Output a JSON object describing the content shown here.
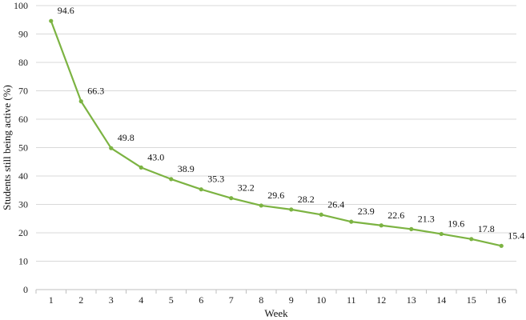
{
  "chart_data": {
    "type": "line",
    "xlabel": "Week",
    "ylabel": "Students still being active (%)",
    "ylim": [
      0,
      100
    ],
    "yticks": [
      0,
      10,
      20,
      30,
      40,
      50,
      60,
      70,
      80,
      90,
      100
    ],
    "categories": [
      "1",
      "2",
      "3",
      "4",
      "5",
      "6",
      "7",
      "8",
      "9",
      "10",
      "11",
      "12",
      "13",
      "14",
      "15",
      "16"
    ],
    "series": [
      {
        "values": [
          94.6,
          66.3,
          49.8,
          43.0,
          38.9,
          35.3,
          32.2,
          29.6,
          28.2,
          26.4,
          23.9,
          22.6,
          21.3,
          19.6,
          17.8,
          15.4
        ],
        "labels": [
          "94.6",
          "66.3",
          "49.8",
          "43.0",
          "38.9",
          "35.3",
          "32.2",
          "29.6",
          "28.2",
          "26.4",
          "23.9",
          "22.6",
          "21.3",
          "19.6",
          "17.8",
          "15.4"
        ],
        "color": "#7cb342"
      }
    ],
    "grid": true,
    "legend": "none"
  }
}
